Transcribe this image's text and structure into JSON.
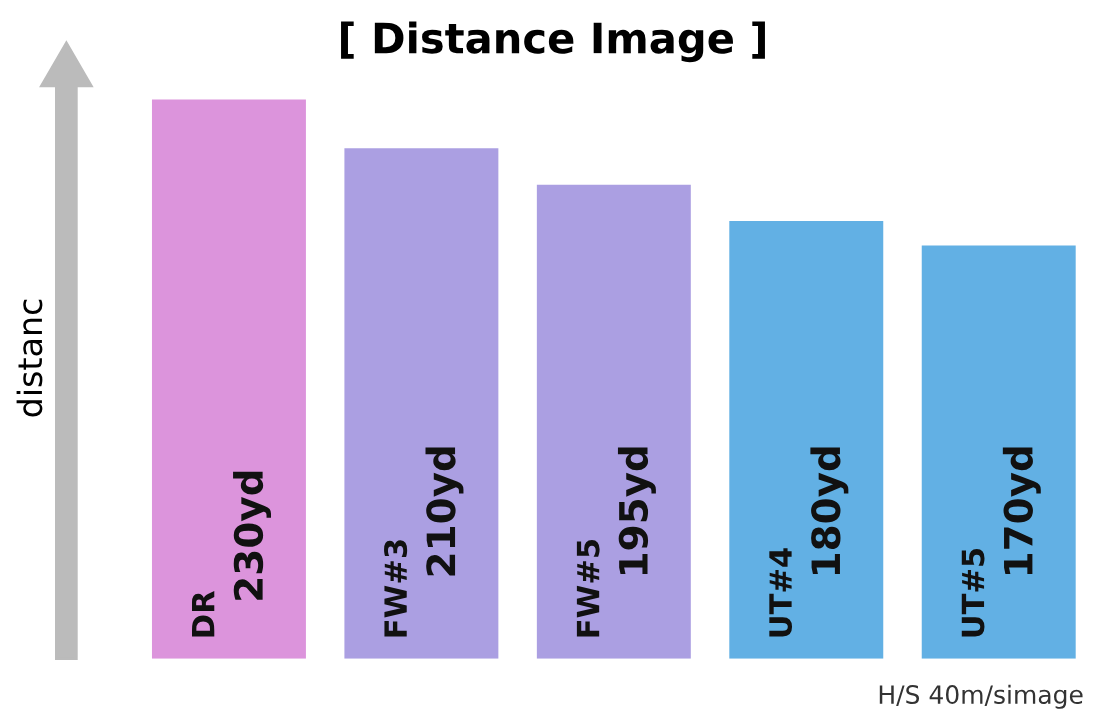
{
  "chart_data": {
    "type": "bar",
    "title": "[ Distance Image ]",
    "ylabel": "distanc",
    "categories": [
      "DR",
      "FW#3",
      "FW#5",
      "UT#4",
      "UT#5"
    ],
    "values": [
      230,
      210,
      195,
      180,
      170
    ],
    "value_labels": [
      "230yd",
      "210yd",
      "195yd",
      "180yd",
      "170yd"
    ],
    "colors": [
      "#dc94dc",
      "#ab9fe2",
      "#ab9fe2",
      "#62b0e4",
      "#62b0e4"
    ],
    "annotations": [
      "H/S 40m/simage"
    ]
  }
}
